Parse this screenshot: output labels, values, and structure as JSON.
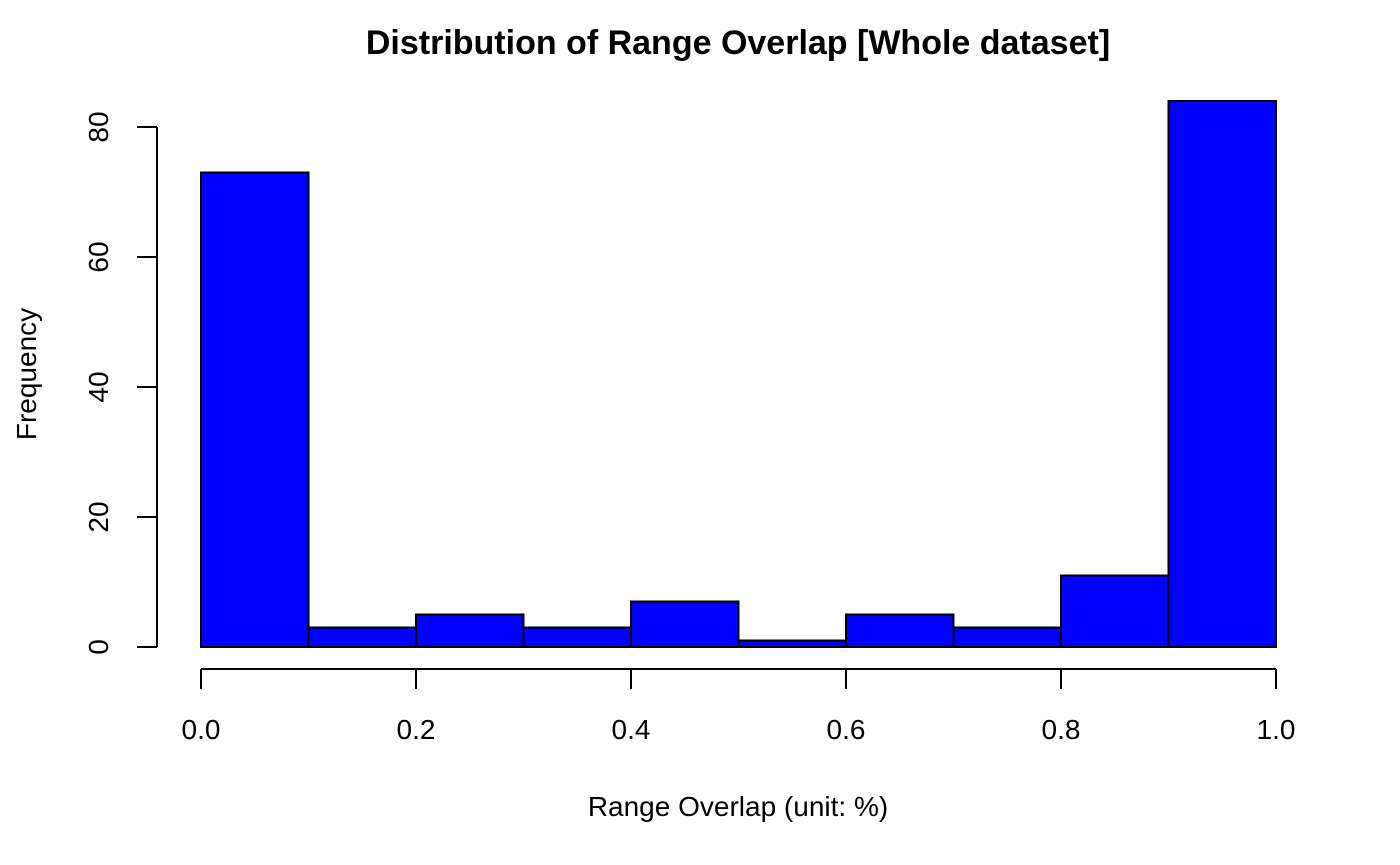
{
  "chart_data": {
    "type": "bar",
    "title": "Distribution of Range Overlap [Whole dataset]",
    "xlabel": "Range Overlap (unit: %)",
    "ylabel": "Frequency",
    "bins": [
      {
        "start": 0.0,
        "end": 0.1,
        "count": 73
      },
      {
        "start": 0.1,
        "end": 0.2,
        "count": 3
      },
      {
        "start": 0.2,
        "end": 0.3,
        "count": 5
      },
      {
        "start": 0.3,
        "end": 0.4,
        "count": 3
      },
      {
        "start": 0.4,
        "end": 0.5,
        "count": 7
      },
      {
        "start": 0.5,
        "end": 0.6,
        "count": 1
      },
      {
        "start": 0.6,
        "end": 0.7,
        "count": 5
      },
      {
        "start": 0.7,
        "end": 0.8,
        "count": 3
      },
      {
        "start": 0.8,
        "end": 0.9,
        "count": 11
      },
      {
        "start": 0.9,
        "end": 1.0,
        "count": 84
      }
    ],
    "xlim": [
      0.0,
      1.0
    ],
    "ylim": [
      0,
      84
    ],
    "x_ticks": [
      "0.0",
      "0.2",
      "0.4",
      "0.6",
      "0.8",
      "1.0"
    ],
    "y_ticks": [
      "0",
      "20",
      "40",
      "60",
      "80"
    ],
    "bar_color": "#0000FF",
    "grid": false,
    "legend": "none"
  }
}
